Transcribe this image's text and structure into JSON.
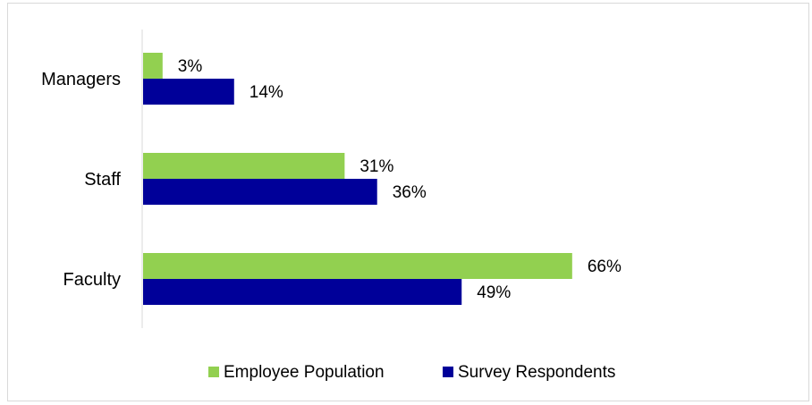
{
  "chart_data": {
    "type": "bar",
    "orientation": "horizontal",
    "categories": [
      "Managers",
      "Staff",
      "Faculty"
    ],
    "series": [
      {
        "name": "Employee Population",
        "values": [
          3,
          31,
          66
        ],
        "labels": [
          "3%",
          "31%",
          "66%"
        ],
        "color": "#92d050"
      },
      {
        "name": "Survey Respondents",
        "values": [
          14,
          36,
          49
        ],
        "labels": [
          "14%",
          "36%",
          "49%"
        ],
        "color": "#000099"
      }
    ],
    "unit": "%",
    "xlim": [
      0,
      100
    ],
    "grid": false,
    "legend_position": "bottom"
  }
}
